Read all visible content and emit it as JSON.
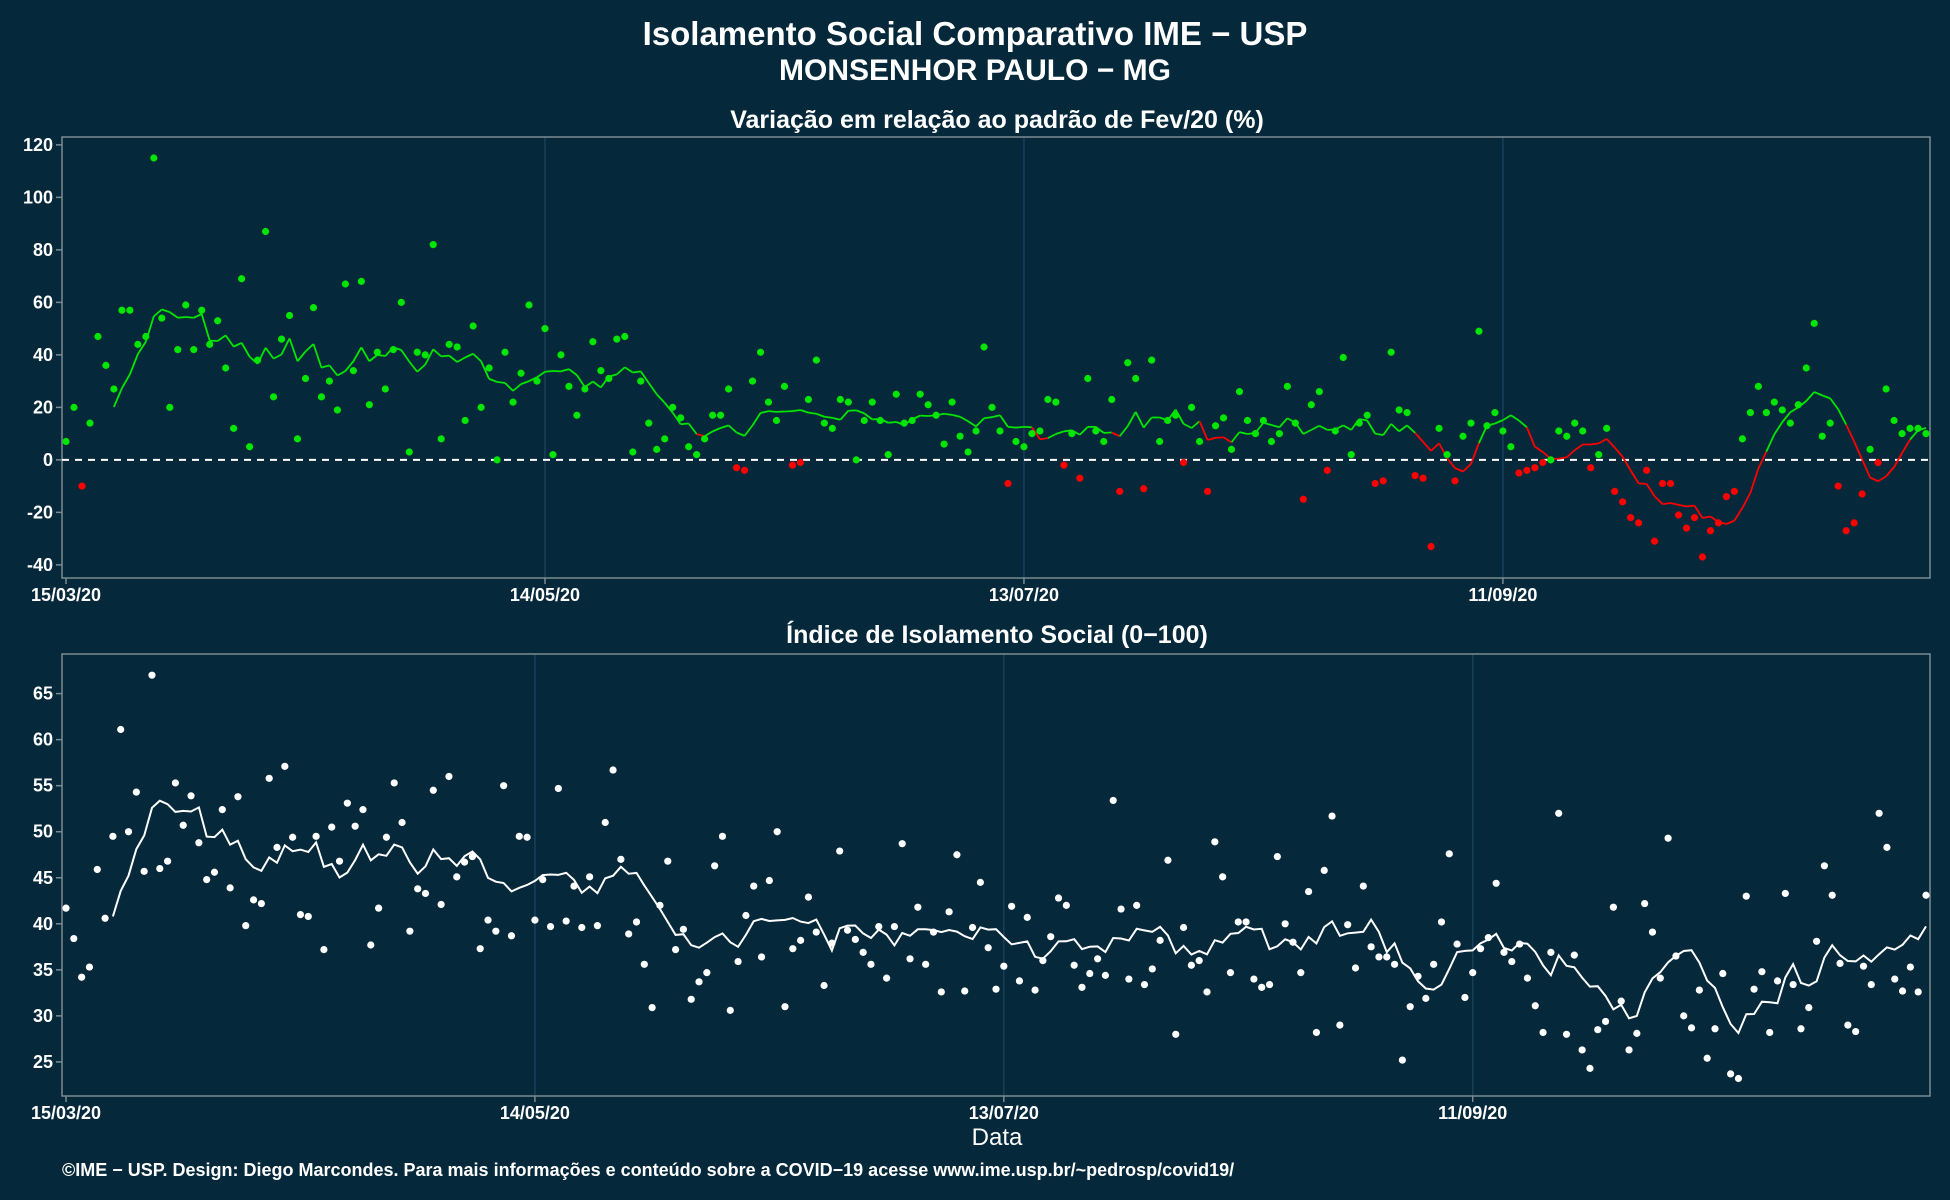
{
  "header": {
    "title": "Isolamento Social Comparativo IME − USP",
    "subtitle": "MONSENHOR PAULO − MG"
  },
  "footer": {
    "xlabel": "Data",
    "credit": "©IME − USP. Design: Diego Marcondes. Para mais informações e conteúdo sobre a COVID−19 acesse www.ime.usp.br/~pedrosp/covid19/"
  },
  "colors": {
    "background": "#05283a",
    "positive": "#00e600",
    "negative": "#ff0000",
    "index_series": "#ffffff",
    "frame": "#7d8a91",
    "grid": "#17405a"
  },
  "chart_data": [
    {
      "type": "scatter",
      "title": "Variação em relação ao padrão de Fev/20 (%)",
      "xlabel": "",
      "ylabel": "",
      "x_start": "2020-03-15",
      "x_end": "2020-10-23",
      "x_ticks": [
        "15/03/20",
        "14/05/20",
        "13/07/20",
        "11/09/20"
      ],
      "x_tick_days": [
        0,
        60,
        120,
        180
      ],
      "ylim": [
        -45,
        123
      ],
      "y_ticks": [
        -40,
        -20,
        0,
        20,
        40,
        60,
        80,
        100,
        120
      ],
      "reference_line": 0,
      "grid": true,
      "legend": "none",
      "series": [
        {
          "kind": "points",
          "values": [
            7,
            20,
            -10,
            14,
            47,
            36,
            27,
            57,
            57,
            44,
            47,
            115,
            54,
            20,
            42,
            59,
            42,
            57,
            44,
            53,
            35,
            12,
            69,
            5,
            38,
            87,
            24,
            46,
            55,
            8,
            31,
            58,
            24,
            30,
            19,
            67,
            34,
            68,
            21,
            41,
            27,
            42,
            60,
            3,
            41,
            40,
            82,
            8,
            44,
            43,
            15,
            51,
            20,
            35,
            0,
            41,
            22,
            33,
            59,
            30,
            50,
            2,
            40,
            28,
            17,
            27,
            45,
            34,
            31,
            46,
            47,
            3,
            30,
            14,
            4,
            8,
            20,
            16,
            5,
            2,
            8,
            17,
            17,
            27,
            -3,
            -4,
            30,
            41,
            22,
            15,
            28,
            -2,
            -1,
            23,
            38,
            14,
            12,
            23,
            22,
            0,
            15,
            22,
            15,
            2,
            25,
            14,
            15,
            25,
            21,
            17,
            6,
            22,
            9,
            3,
            11,
            43,
            20,
            11,
            -9,
            7,
            5,
            10,
            11,
            23,
            22,
            -2,
            10,
            -7,
            31,
            11,
            7,
            23,
            -12,
            37,
            31,
            -11,
            38,
            7,
            15,
            17,
            -1,
            20,
            7,
            -12,
            13,
            16,
            4,
            26,
            15,
            10,
            15,
            7,
            10,
            28,
            14,
            -15,
            21,
            26,
            -4,
            11,
            39,
            2,
            14,
            17,
            -9,
            -8,
            41,
            19,
            18,
            -6,
            -7,
            -33,
            12,
            2,
            -8,
            9,
            14,
            49,
            13,
            18,
            11,
            5,
            -5,
            -4,
            -3,
            -1,
            0,
            11,
            9,
            14,
            11,
            -3,
            2,
            12,
            -12,
            -16,
            -22,
            -24,
            -4,
            -31,
            -9,
            -9,
            -21,
            -26,
            -22,
            -37,
            -27,
            -24,
            -14,
            -12,
            8,
            18,
            28,
            18,
            22,
            19,
            14,
            21,
            35,
            52,
            9,
            14,
            -10,
            -27,
            -24,
            -13,
            4,
            -1,
            27,
            15,
            10,
            12,
            12,
            10
          ],
          "dash_style": "dots"
        }
      ]
    },
    {
      "type": "scatter",
      "title": "Índice de Isolamento Social (0−100)",
      "xlabel": "Data",
      "ylabel": "",
      "x_start": "2020-03-15",
      "x_end": "2020-10-23",
      "x_ticks": [
        "15/03/20",
        "14/05/20",
        "13/07/20",
        "11/09/20"
      ],
      "x_tick_days": [
        0,
        60,
        120,
        180
      ],
      "ylim": [
        21.3,
        69.3
      ],
      "y_ticks": [
        25,
        30,
        35,
        40,
        45,
        50,
        55,
        60,
        65
      ],
      "grid": true,
      "legend": "none",
      "series": [
        {
          "kind": "points",
          "values": [
            41.7,
            38.4,
            34.2,
            35.3,
            45.9,
            40.6,
            49.5,
            61.1,
            50,
            54.3,
            45.7,
            67,
            46,
            46.8,
            55.3,
            50.7,
            53.9,
            48.8,
            44.8,
            45.6,
            52.4,
            43.9,
            53.8,
            39.8,
            42.6,
            42.2,
            55.8,
            48.3,
            57.1,
            49.4,
            41,
            40.8,
            49.5,
            37.2,
            50.5,
            46.8,
            53.1,
            50.6,
            52.4,
            37.7,
            41.7,
            49.4,
            55.3,
            51,
            39.2,
            43.8,
            43.3,
            54.5,
            42.1,
            56,
            45.1,
            46.7,
            47.3,
            37.3,
            40.4,
            39.2,
            55,
            38.7,
            49.5,
            49.4,
            40.4,
            44.8,
            39.7,
            54.7,
            40.3,
            44.1,
            39.6,
            45.1,
            39.8,
            51,
            56.7,
            47,
            38.9,
            40.2,
            35.6,
            30.9,
            42,
            46.8,
            37.2,
            39.4,
            31.8,
            33.7,
            34.7,
            46.3,
            49.5,
            30.6,
            35.9,
            40.9,
            44.1,
            36.4,
            44.7,
            50,
            31,
            37.3,
            38.2,
            42.9,
            39.1,
            33.3,
            37.9,
            47.9,
            39.3,
            38.3,
            36.9,
            35.6,
            39.7,
            34.1,
            39.7,
            48.7,
            36.2,
            41.8,
            35.6,
            39.1,
            32.6,
            41.3,
            47.5,
            32.7,
            39.6,
            44.5,
            37.4,
            32.9,
            35.4,
            41.9,
            33.8,
            40.7,
            32.8,
            36,
            38.6,
            42.8,
            42,
            35.5,
            33.1,
            34.6,
            36.2,
            34.4,
            53.4,
            41.6,
            34,
            42,
            33.4,
            35.1,
            38.2,
            46.9,
            28,
            39.6,
            35.5,
            36,
            32.6,
            48.9,
            45.1,
            34.7,
            40.2,
            40.2,
            34,
            33.1,
            33.4,
            47.3,
            40,
            38,
            34.7,
            43.5,
            28.2,
            45.8,
            51.7,
            29,
            39.9,
            35.2,
            44.1,
            37.5,
            36.4,
            36.4,
            35.6,
            25.2,
            31,
            34.3,
            31.9,
            35.6,
            40.2,
            47.6,
            37.8,
            32,
            34.7,
            37.3,
            38.5,
            44.4,
            36.9,
            35.9,
            37.8,
            34.1,
            31.1,
            28.2,
            36.9,
            52,
            28,
            36.6,
            26.3,
            24.3,
            28.5,
            29.4,
            41.8,
            31.6,
            26.3,
            28.1,
            42.2,
            39.1,
            34.1,
            49.3,
            36.5,
            30,
            28.7,
            32.8,
            25.4,
            28.6,
            34.6,
            23.7,
            23.2,
            43,
            32.9,
            34.8,
            28.2,
            33.8,
            43.3,
            33.4,
            28.6,
            30.9,
            38.1,
            46.3,
            43.1,
            35.7,
            29,
            28.3,
            35.4,
            33.4,
            52,
            48.3,
            34,
            32.7,
            35.3,
            32.6,
            43.1
          ]
        }
      ]
    }
  ]
}
